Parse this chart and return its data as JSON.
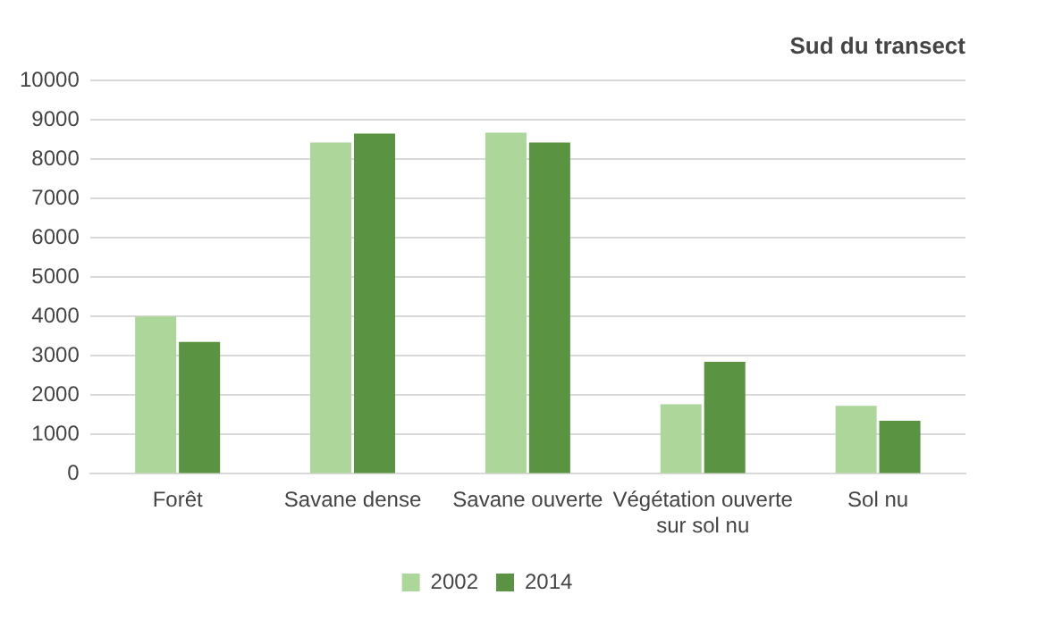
{
  "chart_data": {
    "type": "bar",
    "title": "Sud du transect",
    "categories": [
      "Forêt",
      "Savane dense",
      "Savane ouverte",
      "Végétation ouverte sur sol nu",
      "Sol nu"
    ],
    "series": [
      {
        "name": "2002",
        "color": "#acd69a",
        "values": [
          4000,
          8420,
          8670,
          1770,
          1730
        ]
      },
      {
        "name": "2014",
        "color": "#5a9341",
        "values": [
          3350,
          8650,
          8420,
          2850,
          1350
        ]
      }
    ],
    "ylim": [
      0,
      10000
    ],
    "yticks": [
      0,
      1000,
      2000,
      3000,
      4000,
      5000,
      6000,
      7000,
      8000,
      9000,
      10000
    ],
    "grid": "y",
    "legend": "bottom"
  }
}
